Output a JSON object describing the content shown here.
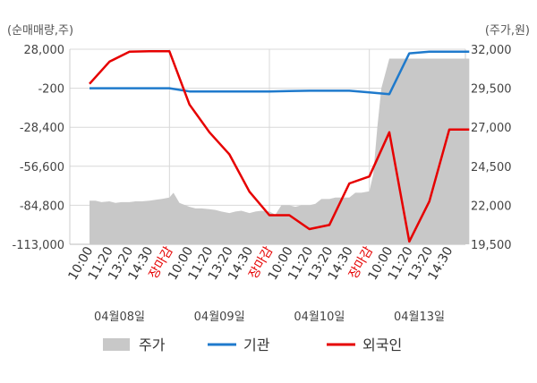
{
  "chart_data": {
    "type": "line",
    "left_unit": "(순매매량,주)",
    "right_unit": "(주가,원)",
    "left_ticks": [
      28000,
      -200,
      -28400,
      -56600,
      -84800,
      -113000
    ],
    "left_tick_labels": [
      "28,000",
      "-200",
      "-28,400",
      "-56,600",
      "-84,800",
      "-113,000"
    ],
    "right_ticks": [
      32000,
      29500,
      27000,
      24500,
      22000,
      19500
    ],
    "right_tick_labels": [
      "32,000",
      "29,500",
      "27,000",
      "24,500",
      "22,000",
      "19,500"
    ],
    "left_ylim": [
      -113000,
      28000
    ],
    "right_ylim": [
      19500,
      32000
    ],
    "x_tick_labels": [
      "10:00",
      "11:20",
      "13:20",
      "14:30",
      "장마감",
      "10:00",
      "11:20",
      "13:20",
      "14:30",
      "장마감",
      "10:00",
      "11:20",
      "13:20",
      "14:30",
      "장마감",
      "10:00",
      "11:20",
      "13:20",
      "14:30"
    ],
    "x_tick_red": [
      false,
      false,
      false,
      false,
      true,
      false,
      false,
      false,
      false,
      true,
      false,
      false,
      false,
      false,
      true,
      false,
      false,
      false,
      false
    ],
    "dates": [
      "04월08일",
      "04월09일",
      "04월10일",
      "04월13일"
    ],
    "date_anchor_index": [
      1.5,
      6.5,
      11.5,
      16.5
    ],
    "grid": true,
    "legend_position": "bottom",
    "series": [
      {
        "name": "주가",
        "axis": "right",
        "kind": "area",
        "color": "#c8c8c8",
        "x": [
          0,
          0.3,
          0.6,
          1,
          1.3,
          1.6,
          2,
          2.3,
          2.6,
          3,
          3.3,
          3.6,
          4,
          4.2,
          4.5,
          4.8,
          5,
          5.3,
          5.6,
          6,
          6.3,
          6.6,
          7,
          7.3,
          7.6,
          8,
          8.3,
          8.6,
          9,
          9.3,
          9.6,
          10,
          10.3,
          10.6,
          11,
          11.3,
          11.6,
          12,
          12.3,
          12.6,
          13,
          13.3,
          13.6,
          14,
          14.2,
          14.4,
          14.6,
          15,
          15.2,
          15.5,
          16,
          16.5,
          17,
          17.5,
          18,
          18.5,
          19
        ],
        "values": [
          22300,
          22300,
          22200,
          22250,
          22150,
          22200,
          22200,
          22250,
          22250,
          22300,
          22350,
          22400,
          22500,
          22800,
          22150,
          22000,
          21900,
          21800,
          21800,
          21750,
          21700,
          21600,
          21500,
          21600,
          21650,
          21500,
          21600,
          21650,
          21600,
          21400,
          22000,
          22000,
          21900,
          22000,
          22000,
          22100,
          22400,
          22400,
          22500,
          22500,
          22500,
          22800,
          22800,
          22900,
          24000,
          27000,
          29500,
          31400,
          31400,
          31400,
          31400,
          31400,
          31400,
          31400,
          31400,
          31400,
          31400
        ]
      },
      {
        "name": "기관",
        "axis": "left",
        "kind": "line",
        "color": "#1f7acc",
        "x": [
          0,
          1,
          2,
          3,
          4,
          5,
          6,
          7,
          8,
          9,
          10,
          11,
          12,
          13,
          14,
          15,
          16,
          17,
          18,
          19
        ],
        "values": [
          -200,
          -200,
          -200,
          -200,
          -200,
          -2500,
          -2500,
          -2500,
          -2500,
          -2500,
          -2200,
          -2000,
          -2000,
          -2000,
          -3200,
          -4500,
          25000,
          26200,
          26200,
          26200
        ]
      },
      {
        "name": "외국인",
        "axis": "left",
        "kind": "line",
        "color": "#e60000",
        "x": [
          0,
          1,
          2,
          3,
          4,
          5,
          6,
          7,
          8,
          9,
          10,
          11,
          12,
          13,
          14,
          15,
          16,
          17,
          18,
          19
        ],
        "values": [
          3000,
          19000,
          26200,
          26500,
          26500,
          -12000,
          -32000,
          -48000,
          -75000,
          -92000,
          -92000,
          -102000,
          -99000,
          -69000,
          -64000,
          -32000,
          -111000,
          -82000,
          -30000,
          -30000
        ]
      }
    ]
  },
  "legend": [
    {
      "label": "주가",
      "color": "#c8c8c8",
      "kind": "box"
    },
    {
      "label": "기관",
      "color": "#1f7acc",
      "kind": "line"
    },
    {
      "label": "외국인",
      "color": "#e60000",
      "kind": "line"
    }
  ]
}
